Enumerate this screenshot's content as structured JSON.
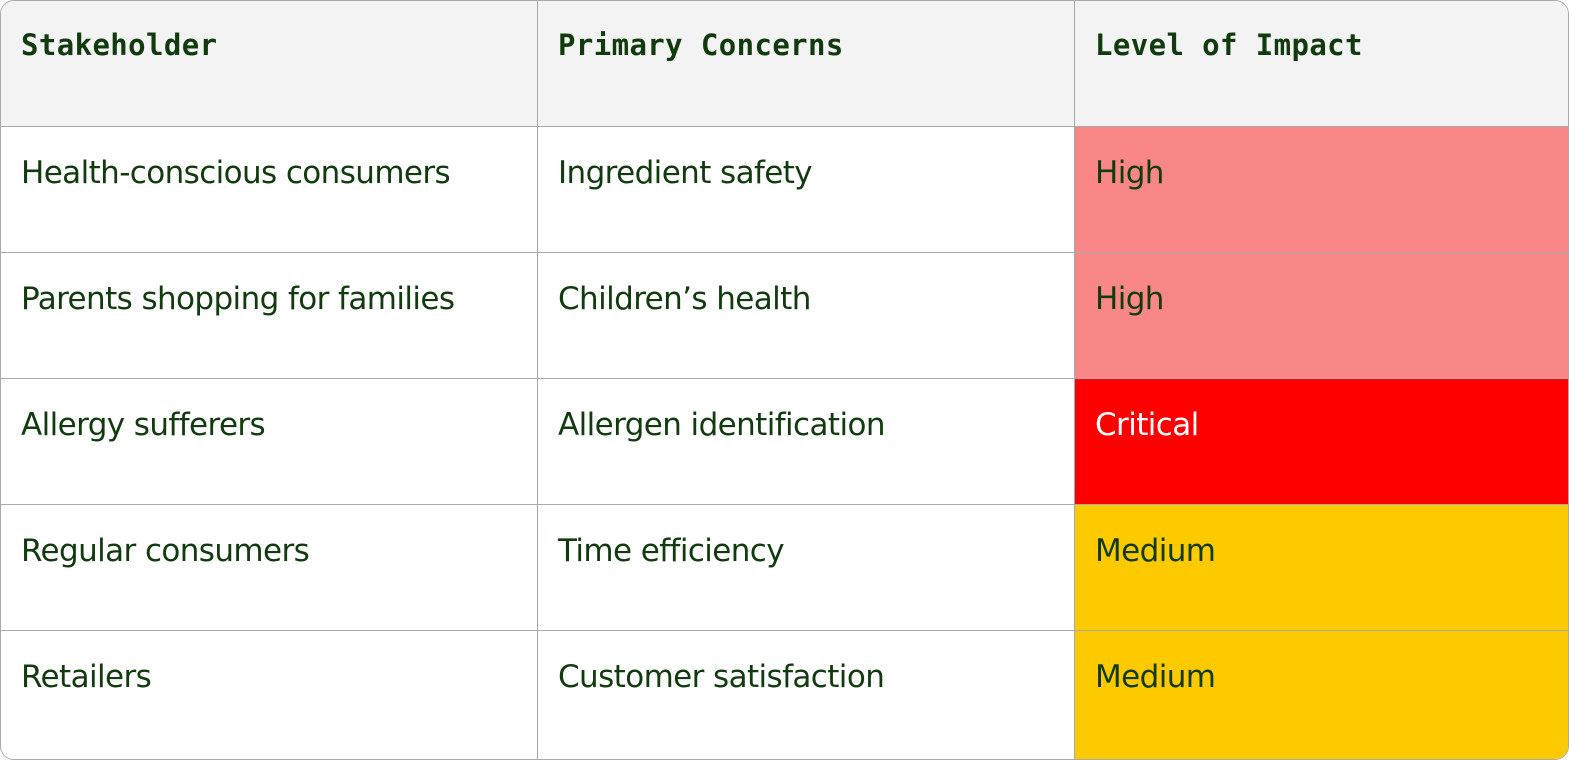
{
  "table": {
    "headers": {
      "stakeholder": "Stakeholder",
      "concerns": "Primary Concerns",
      "impact": "Level of Impact"
    },
    "rows": [
      {
        "stakeholder": "Health-conscious consumers",
        "concern": "Ingredient safety",
        "impact": "High"
      },
      {
        "stakeholder": "Parents shopping for families",
        "concern": "Children’s health",
        "impact": "High"
      },
      {
        "stakeholder": "Allergy sufferers",
        "concern": "Allergen identification",
        "impact": "Critical"
      },
      {
        "stakeholder": "Regular consumers",
        "concern": "Time efficiency",
        "impact": "Medium"
      },
      {
        "stakeholder": "Retailers",
        "concern": "Customer satisfaction",
        "impact": "Medium"
      }
    ]
  },
  "colors": {
    "text": "#113b0e",
    "header_bg": "#f3f3f3",
    "border": "#a9a9a9",
    "high": "#fa8787",
    "critical": "#fe0000",
    "medium": "#fdca00"
  }
}
